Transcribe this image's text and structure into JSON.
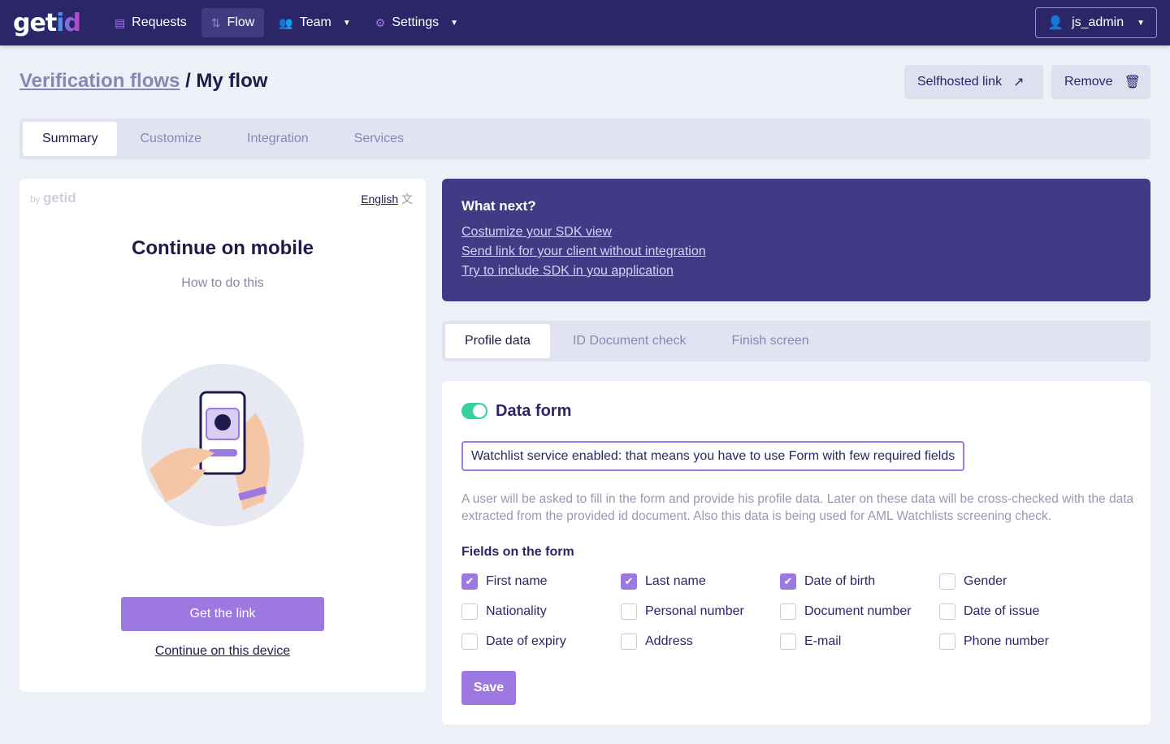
{
  "nav": {
    "logo": "getid",
    "items": [
      {
        "label": "Requests",
        "icon": "receipt-icon"
      },
      {
        "label": "Flow",
        "icon": "flow-icon",
        "active": true
      },
      {
        "label": "Team",
        "icon": "users-icon"
      },
      {
        "label": "Settings",
        "icon": "gear-icon"
      }
    ],
    "user": "js_admin"
  },
  "breadcrumb": {
    "parent": "Verification flows",
    "sep": "/",
    "current": "My flow"
  },
  "actions": {
    "selfhosted": "Selfhosted link",
    "remove": "Remove"
  },
  "tabs": [
    "Summary",
    "Customize",
    "Integration",
    "Services"
  ],
  "preview": {
    "by": "by",
    "brand": "getid",
    "language": "English",
    "title": "Continue on mobile",
    "subtitle": "How to do this",
    "button": "Get the link",
    "link": "Continue on this device"
  },
  "next": {
    "title": "What next?",
    "links": [
      "Costumize your SDK view",
      "Send link for your client without integration",
      "Try to include SDK in you application"
    ]
  },
  "subtabs": [
    "Profile data",
    "ID Document check",
    "Finish screen"
  ],
  "form": {
    "title": "Data form",
    "enabled": true,
    "notice": "Watchlist service enabled: that means you have to use Form with few required fields",
    "description": "A user will be asked to fill in the form and provide his profile data. Later on these data will be cross-checked with the data extracted from the provided id document. Also this data is being used for AML Watchlists screening check.",
    "fields_title": "Fields on the form",
    "fields": [
      {
        "label": "First name",
        "checked": true
      },
      {
        "label": "Last name",
        "checked": true
      },
      {
        "label": "Date  of birth",
        "checked": true
      },
      {
        "label": "Gender",
        "checked": false
      },
      {
        "label": "Nationality",
        "checked": false
      },
      {
        "label": "Personal number",
        "checked": false
      },
      {
        "label": "Document number",
        "checked": false
      },
      {
        "label": "Date of issue",
        "checked": false
      },
      {
        "label": "Date of expiry",
        "checked": false
      },
      {
        "label": "Address",
        "checked": false
      },
      {
        "label": "E-mail",
        "checked": false
      },
      {
        "label": "Phone number",
        "checked": false
      }
    ],
    "save": "Save"
  },
  "colors": {
    "nav": "#2b2668",
    "accent": "#9d78e0",
    "toggle": "#34d39e",
    "panel": "#433a86"
  }
}
